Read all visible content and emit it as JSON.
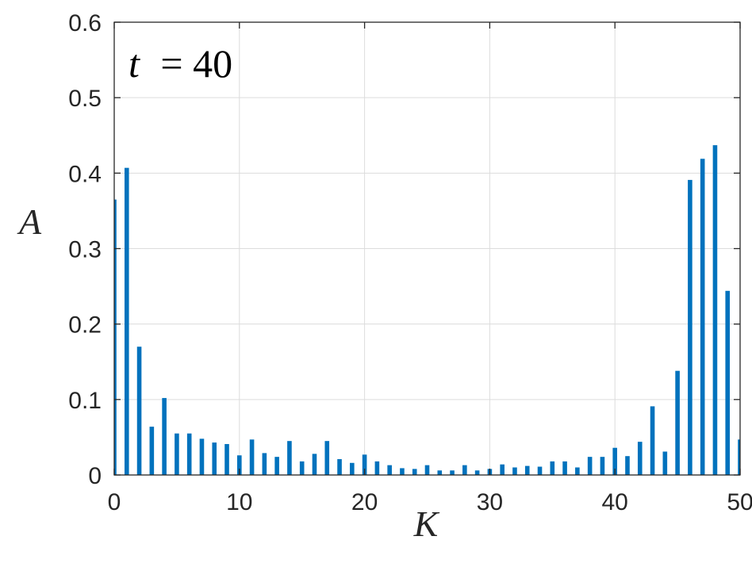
{
  "chart_data": {
    "type": "bar",
    "xlabel": "K",
    "ylabel": "A",
    "annotation": {
      "variable": "t",
      "operator": "=",
      "value": "40"
    },
    "xlim": [
      0,
      50
    ],
    "ylim": [
      0,
      0.6
    ],
    "xticks": [
      0,
      10,
      20,
      30,
      40,
      50
    ],
    "yticks": [
      0,
      0.1,
      0.2,
      0.3,
      0.4,
      0.5,
      0.6
    ],
    "xtick_labels": [
      "0",
      "10",
      "20",
      "30",
      "40",
      "50"
    ],
    "ytick_labels": [
      "0",
      "0.1",
      "0.2",
      "0.3",
      "0.4",
      "0.5",
      "0.6"
    ],
    "grid": true,
    "bar_color": "#0072BD",
    "x": [
      0,
      1,
      2,
      3,
      4,
      5,
      6,
      7,
      8,
      9,
      10,
      11,
      12,
      13,
      14,
      15,
      16,
      17,
      18,
      19,
      20,
      21,
      22,
      23,
      24,
      25,
      26,
      27,
      28,
      29,
      30,
      31,
      32,
      33,
      34,
      35,
      36,
      37,
      38,
      39,
      40,
      41,
      42,
      43,
      44,
      45,
      46,
      47,
      48,
      49,
      50
    ],
    "values": [
      0.365,
      0.407,
      0.17,
      0.064,
      0.102,
      0.055,
      0.055,
      0.048,
      0.043,
      0.041,
      0.026,
      0.047,
      0.029,
      0.024,
      0.045,
      0.018,
      0.028,
      0.045,
      0.021,
      0.016,
      0.027,
      0.018,
      0.013,
      0.009,
      0.008,
      0.013,
      0.006,
      0.006,
      0.013,
      0.006,
      0.008,
      0.014,
      0.01,
      0.012,
      0.011,
      0.018,
      0.018,
      0.01,
      0.024,
      0.024,
      0.036,
      0.025,
      0.044,
      0.091,
      0.031,
      0.138,
      0.391,
      0.419,
      0.437,
      0.244,
      0.047
    ]
  }
}
